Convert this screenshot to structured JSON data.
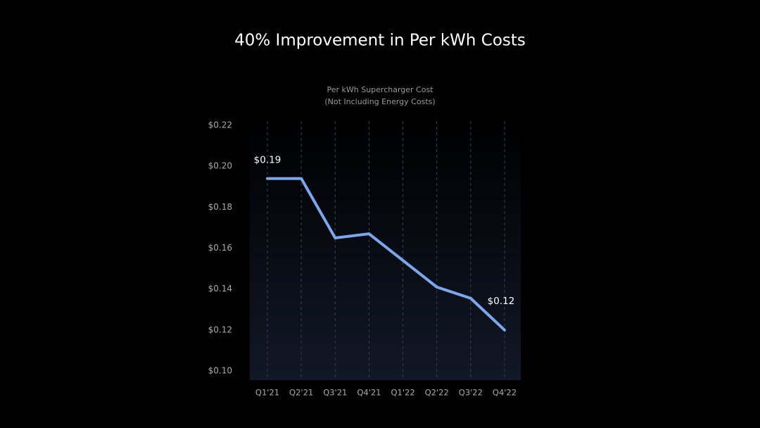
{
  "chart_data": {
    "type": "line",
    "title": "40% Improvement in Per kWh Costs",
    "subtitle": [
      "Per kWh Supercharger Cost",
      "(Not Including Energy Costs)"
    ],
    "categories": [
      "Q1'21",
      "Q2'21",
      "Q3'21",
      "Q4'21",
      "Q1'22",
      "Q2'22",
      "Q3'22",
      "Q4'22"
    ],
    "values": [
      0.194,
      0.194,
      0.165,
      0.167,
      0.154,
      0.141,
      0.1355,
      0.12
    ],
    "value_labels": [
      "$0.19",
      null,
      null,
      null,
      null,
      null,
      null,
      "$0.12"
    ],
    "color": "#7ba7ef",
    "ylim": [
      0.1,
      0.22
    ],
    "yticks": [
      {
        "value": 0.1,
        "label": "$0.10"
      },
      {
        "value": 0.12,
        "label": "$0.12"
      },
      {
        "value": 0.14,
        "label": "$0.14"
      },
      {
        "value": 0.16,
        "label": "$0.16"
      },
      {
        "value": 0.18,
        "label": "$0.18"
      },
      {
        "value": 0.2,
        "label": "$0.20"
      },
      {
        "value": 0.22,
        "label": "$0.22"
      }
    ],
    "grid": true
  }
}
